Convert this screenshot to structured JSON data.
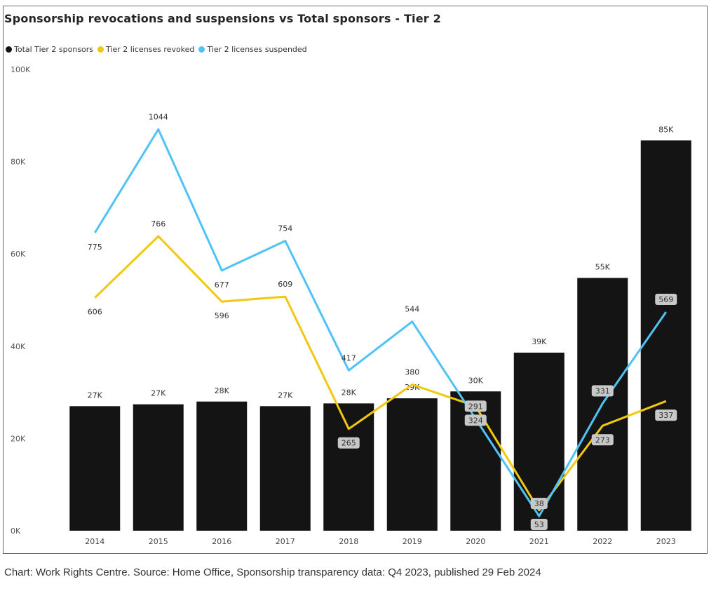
{
  "chart_data": {
    "type": "bar",
    "title": "Sponsorship revocations and suspensions vs Total sponsors - Tier 2",
    "categories": [
      "2014",
      "2015",
      "2016",
      "2017",
      "2018",
      "2019",
      "2020",
      "2021",
      "2022",
      "2023"
    ],
    "ylim": [
      0,
      100000
    ],
    "yticks": [
      0,
      20000,
      40000,
      60000,
      80000,
      100000
    ],
    "ytick_labels": [
      "0K",
      "20K",
      "40K",
      "60K",
      "80K",
      "100K"
    ],
    "legend_position": "top-left",
    "grid": false,
    "series": [
      {
        "name": "Total Tier 2 sponsors",
        "type": "bar",
        "color": "#141414",
        "values": [
          27000,
          27400,
          28000,
          27000,
          27600,
          28700,
          30200,
          38600,
          54800,
          84600
        ],
        "labels": [
          "27K",
          "27K",
          "28K",
          "27K",
          "28K",
          "29K",
          "30K",
          "39K",
          "55K",
          "85K"
        ]
      },
      {
        "name": "Tier 2 licenses revoked",
        "type": "line",
        "color": "#F2C80F",
        "values": [
          606,
          766,
          596,
          609,
          265,
          380,
          324,
          53,
          273,
          337
        ],
        "labels": [
          "606",
          "766",
          "596",
          "609",
          "265",
          "380",
          "324",
          "53",
          "273",
          "337"
        ]
      },
      {
        "name": "Tier 2 licenses suspended",
        "type": "line",
        "color": "#4FC3F7",
        "values": [
          775,
          1044,
          677,
          754,
          417,
          544,
          291,
          38,
          331,
          569
        ],
        "labels": [
          "775",
          "1044",
          "677",
          "754",
          "417",
          "544",
          "291",
          "38",
          "331",
          "569"
        ]
      }
    ]
  },
  "caption": "Chart: Work Rights Centre. Source: Home Office, Sponsorship transparency data: Q4 2023, published 29 Feb 2024"
}
